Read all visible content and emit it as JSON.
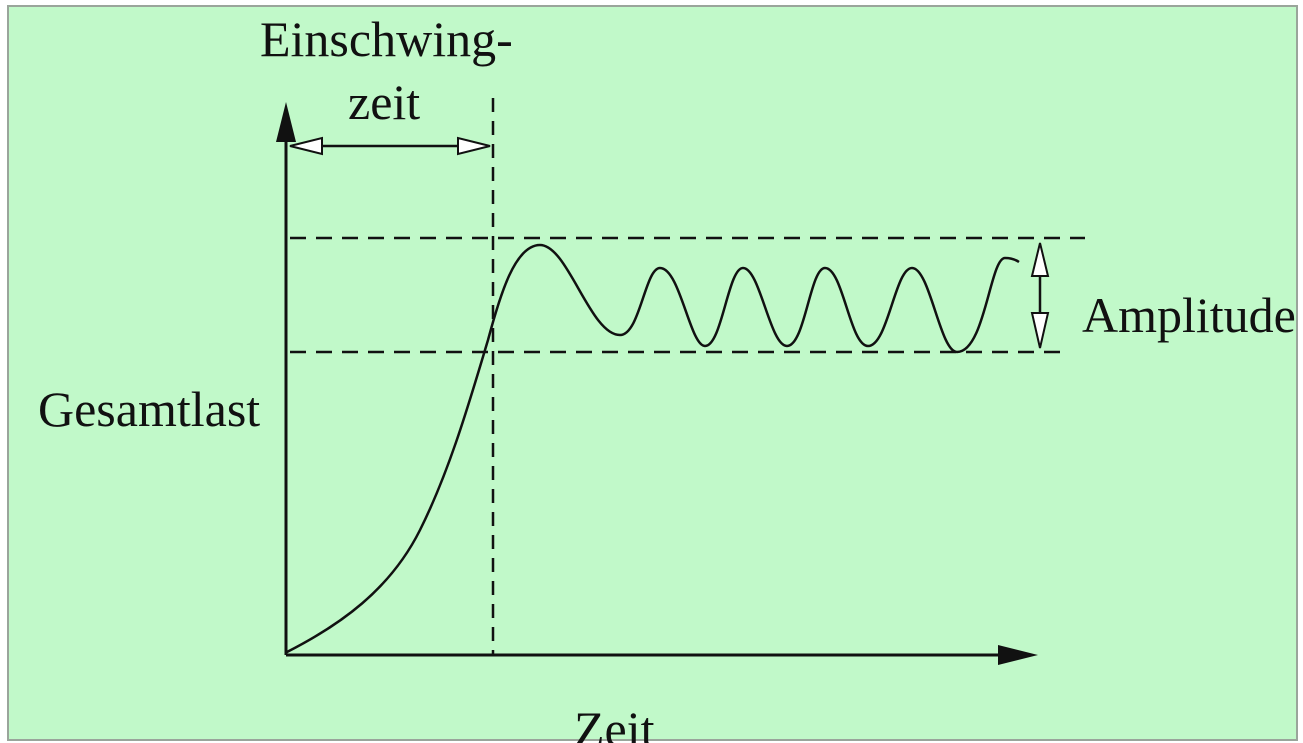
{
  "colors": {
    "background": "#c1f9c9",
    "border": "#9aa59b",
    "ink": "#111111",
    "arrow_fill": "#ffffff"
  },
  "labels": {
    "settling_time_line1": "Einschwing-",
    "settling_time_line2": "zeit",
    "y_axis": "Gesamtlast",
    "x_axis": "Zeit",
    "amplitude": "Amplitude"
  }
}
